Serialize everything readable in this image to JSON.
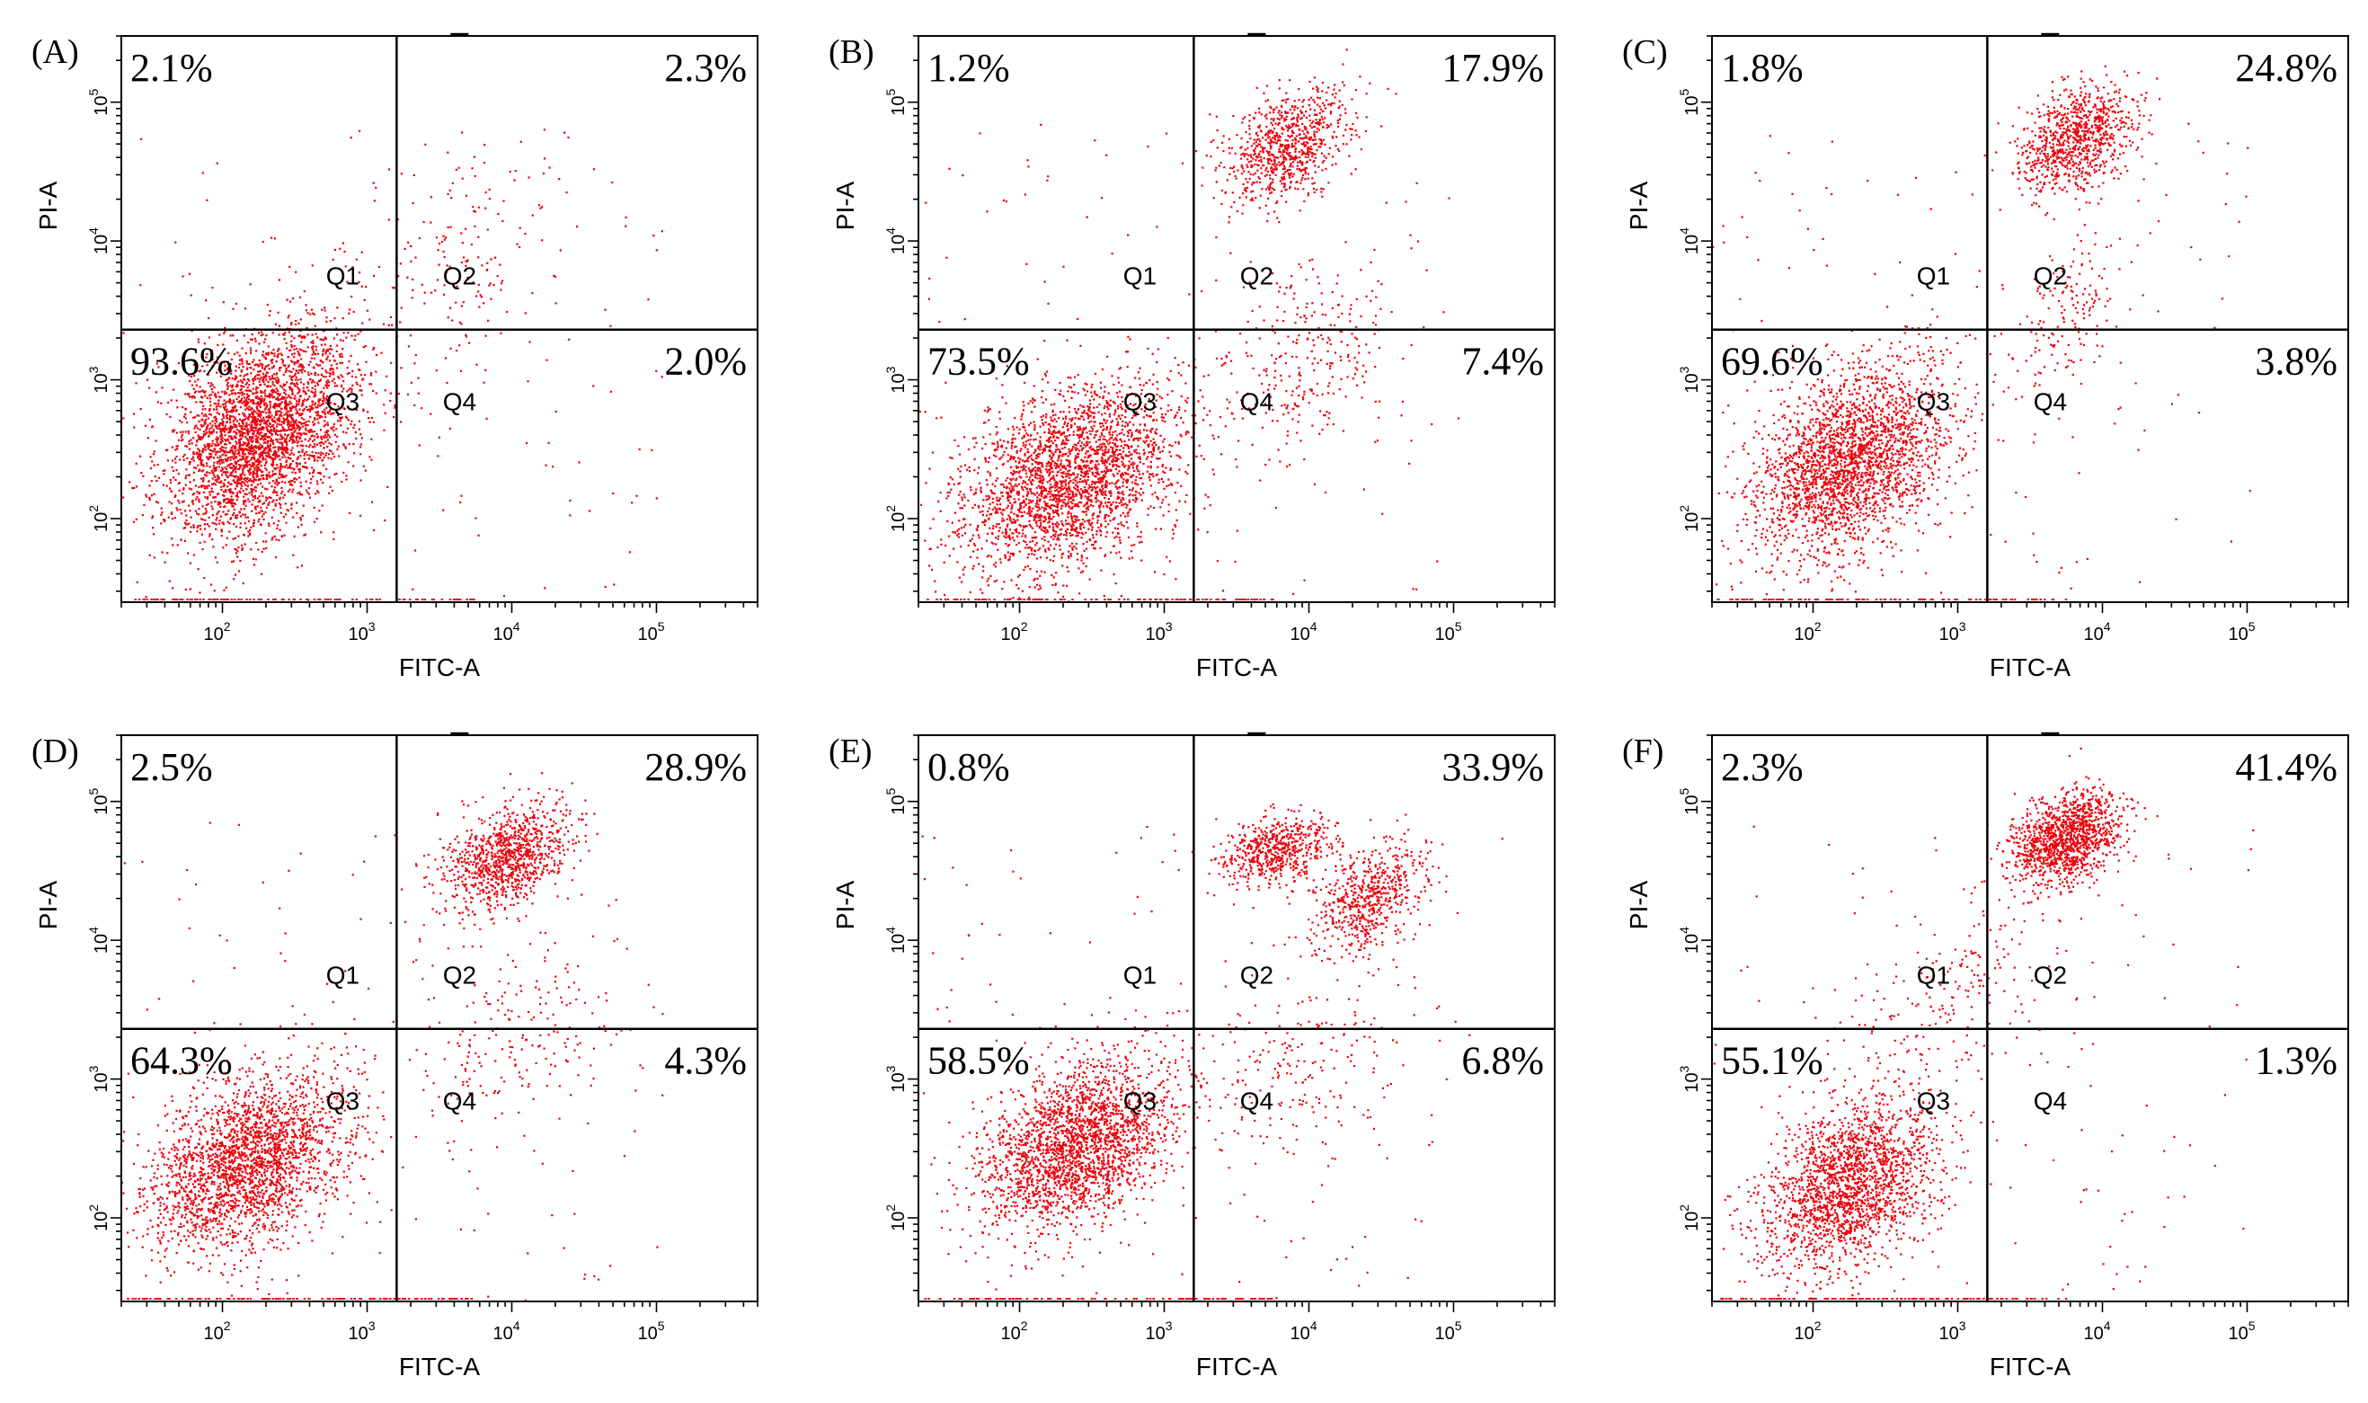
{
  "chart_data": {
    "type": "scatter",
    "description_axes": {
      "xlabel": "FITC-A",
      "ylabel": "PI-A",
      "x_ticks": [
        "10^2",
        "10^3",
        "10^4",
        "10^5"
      ],
      "y_ticks": [
        "10^2",
        "10^3",
        "10^4",
        "10^5"
      ],
      "scale": "log",
      "xlim": [
        20,
        500000
      ],
      "ylim": [
        25,
        300000
      ],
      "x_gate": 1600,
      "y_gate": 2300
    },
    "colors": {
      "dots": "#e8000b",
      "lines": "#000000"
    },
    "quadrant_labels": [
      "Q1",
      "Q2",
      "Q3",
      "Q4"
    ],
    "panels": [
      {
        "letter": "(A)",
        "Q1": "2.1%",
        "Q2": "2.3%",
        "Q3": "93.6%",
        "Q4": "2.0%",
        "clusters": [
          {
            "x": 180,
            "y": 420,
            "sx": 0.32,
            "sy": 0.42,
            "n": 3200
          },
          {
            "x": 3500,
            "y": 6000,
            "sx": 0.4,
            "sy": 0.45,
            "n": 180
          }
        ]
      },
      {
        "letter": "(B)",
        "Q1": "1.2%",
        "Q2": "17.9%",
        "Q3": "73.5%",
        "Q4": "7.4%",
        "clusters": [
          {
            "x": 220,
            "y": 200,
            "sx": 0.38,
            "sy": 0.38,
            "n": 2600
          },
          {
            "x": 7000,
            "y": 50000,
            "sx": 0.22,
            "sy": 0.22,
            "n": 800
          },
          {
            "x": 9000,
            "y": 1500,
            "sx": 0.3,
            "sy": 0.4,
            "n": 280
          }
        ]
      },
      {
        "letter": "(C)",
        "Q1": "1.8%",
        "Q2": "24.8%",
        "Q3": "69.6%",
        "Q4": "3.8%",
        "clusters": [
          {
            "x": 180,
            "y": 260,
            "sx": 0.34,
            "sy": 0.38,
            "n": 2500
          },
          {
            "x": 6500,
            "y": 55000,
            "sx": 0.2,
            "sy": 0.22,
            "n": 900
          },
          {
            "x": 6000,
            "y": 3000,
            "sx": 0.18,
            "sy": 0.3,
            "n": 160
          }
        ]
      },
      {
        "letter": "(D)",
        "Q1": "2.5%",
        "Q2": "28.9%",
        "Q3": "64.3%",
        "Q4": "4.3%",
        "clusters": [
          {
            "x": 150,
            "y": 250,
            "sx": 0.34,
            "sy": 0.36,
            "n": 2400
          },
          {
            "x": 9000,
            "y": 40000,
            "sx": 0.22,
            "sy": 0.2,
            "n": 1000
          },
          {
            "x": 10000,
            "y": 2000,
            "sx": 0.35,
            "sy": 0.4,
            "n": 200
          }
        ]
      },
      {
        "letter": "(E)",
        "Q1": "0.8%",
        "Q2": "33.9%",
        "Q3": "58.5%",
        "Q4": "6.8%",
        "clusters": [
          {
            "x": 250,
            "y": 350,
            "sx": 0.33,
            "sy": 0.33,
            "n": 2300
          },
          {
            "x": 6000,
            "y": 45000,
            "sx": 0.18,
            "sy": 0.14,
            "n": 600
          },
          {
            "x": 25000,
            "y": 20000,
            "sx": 0.2,
            "sy": 0.22,
            "n": 600
          },
          {
            "x": 8000,
            "y": 1200,
            "sx": 0.4,
            "sy": 0.4,
            "n": 220
          }
        ]
      },
      {
        "letter": "(F)",
        "Q1": "2.3%",
        "Q2": "41.4%",
        "Q3": "55.1%",
        "Q4": "1.3%",
        "clusters": [
          {
            "x": 180,
            "y": 180,
            "sx": 0.3,
            "sy": 0.34,
            "n": 2000
          },
          {
            "x": 5500,
            "y": 55000,
            "sx": 0.2,
            "sy": 0.18,
            "n": 1300
          },
          {
            "x": 800,
            "y": 3500,
            "sx": 0.35,
            "sy": 0.35,
            "n": 200
          }
        ]
      }
    ]
  }
}
